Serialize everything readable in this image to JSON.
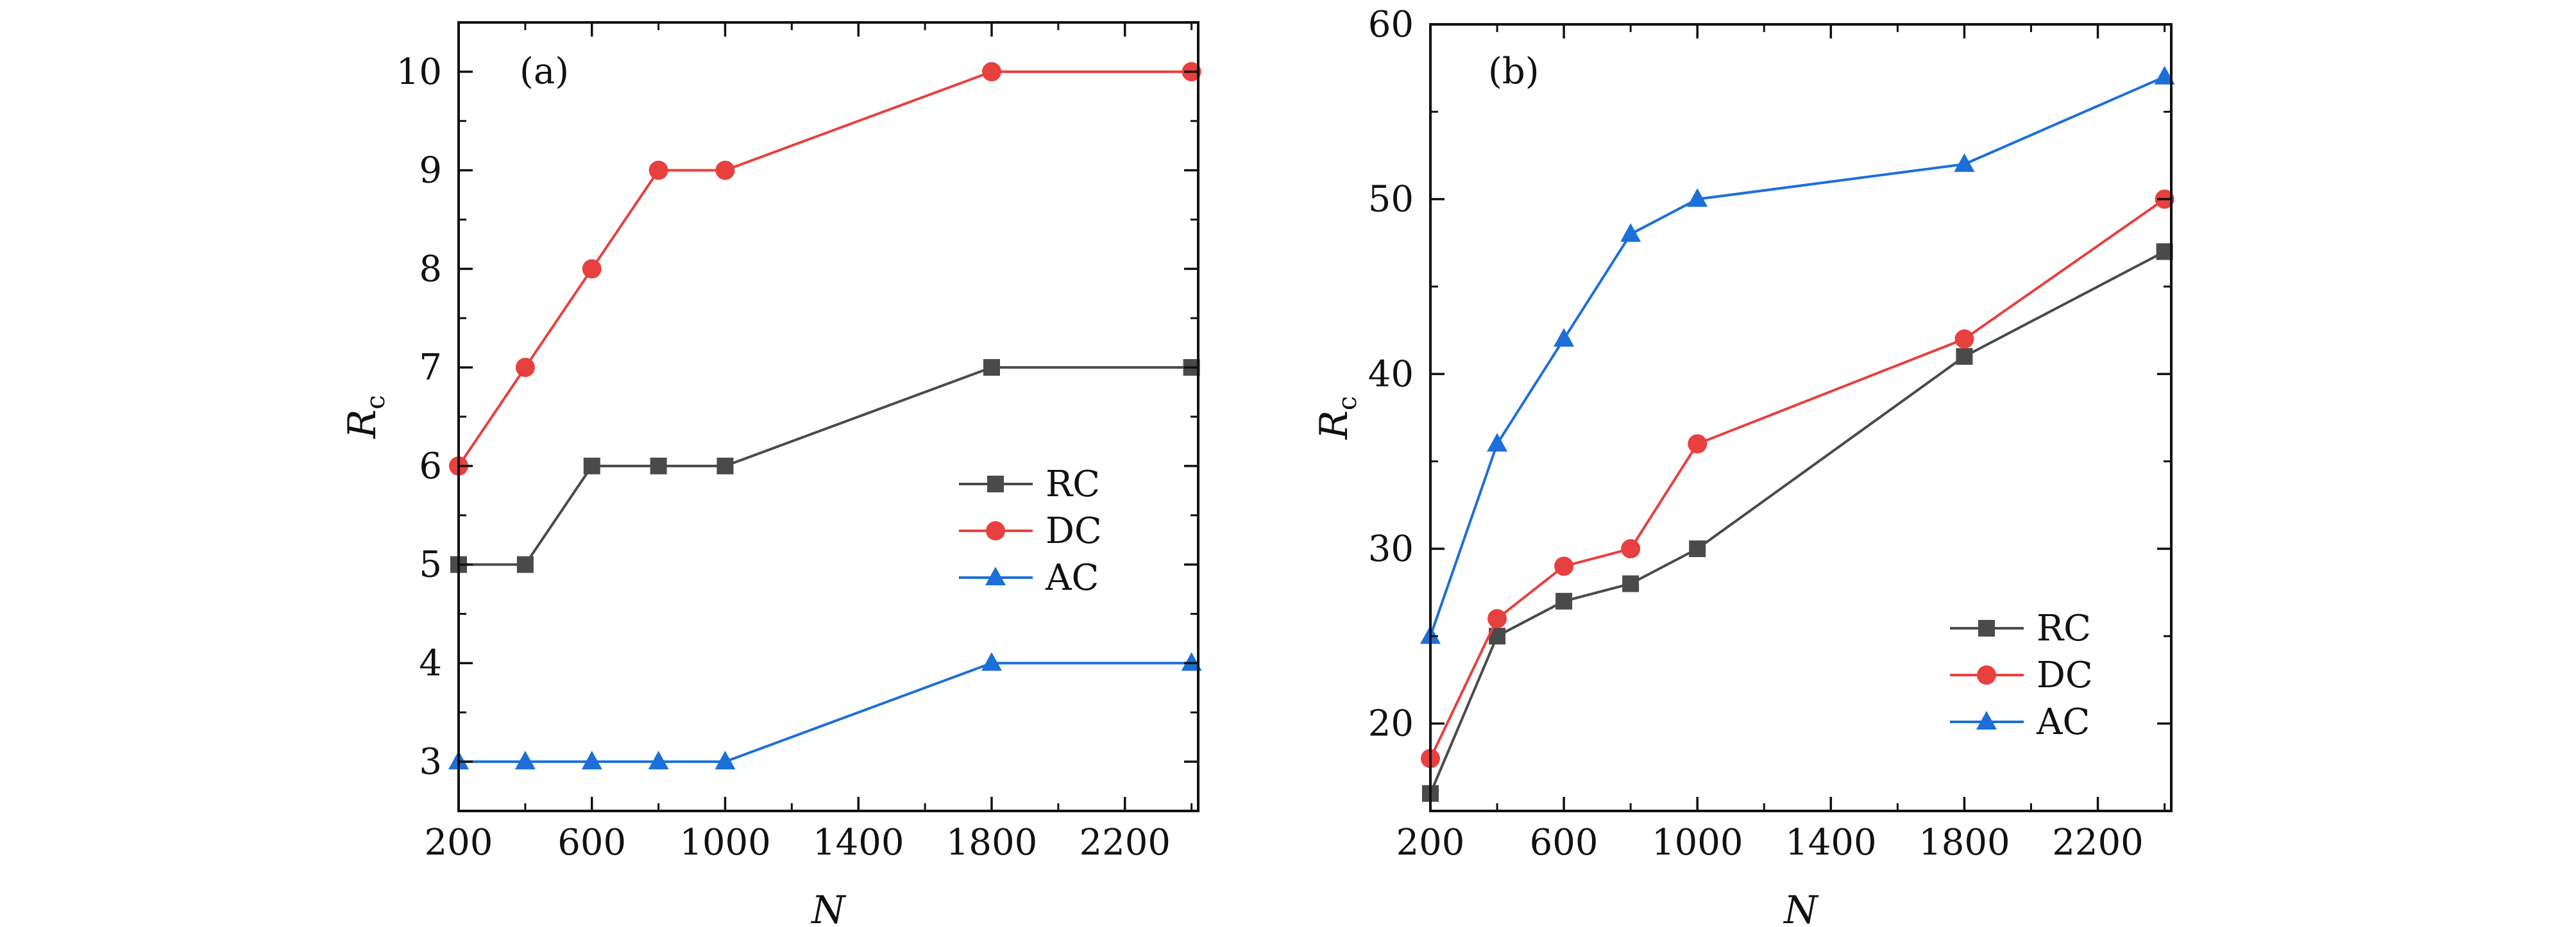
{
  "colors": {
    "RC": "#4a4a4a",
    "DC": "#e8403e",
    "AC": "#1c6fd8",
    "axis": "#111111"
  },
  "chart_data": [
    {
      "type": "line",
      "panel_label": "(a)",
      "xlabel": "N",
      "ylabel_main": "R",
      "ylabel_sub": "c",
      "x": [
        200,
        400,
        600,
        800,
        1000,
        1800,
        2400
      ],
      "xlim": [
        200,
        2420
      ],
      "ylim": [
        2.5,
        10.5
      ],
      "xticks": [
        200,
        600,
        1000,
        1400,
        1800,
        2200
      ],
      "xticklabels": [
        "200",
        "600",
        "1000",
        "1400",
        "1800",
        "2200"
      ],
      "xminor": [
        400,
        800,
        1200,
        1600,
        2000,
        2400
      ],
      "yticks": [
        3,
        4,
        5,
        6,
        7,
        8,
        9,
        10
      ],
      "yticklabels": [
        "3",
        "4",
        "5",
        "6",
        "7",
        "8",
        "9",
        "10"
      ],
      "legend_position": "center-right",
      "series": [
        {
          "name": "RC",
          "marker": "square",
          "values": [
            5,
            5,
            6,
            6,
            6,
            7,
            7
          ]
        },
        {
          "name": "DC",
          "marker": "circle",
          "values": [
            6,
            7,
            8,
            9,
            9,
            10,
            10
          ]
        },
        {
          "name": "AC",
          "marker": "triangle",
          "values": [
            3,
            3,
            3,
            3,
            3,
            4,
            4
          ]
        }
      ]
    },
    {
      "type": "line",
      "panel_label": "(b)",
      "xlabel": "N",
      "ylabel_main": "R",
      "ylabel_sub": "c",
      "x": [
        200,
        400,
        600,
        800,
        1000,
        1800,
        2400
      ],
      "xlim": [
        200,
        2420
      ],
      "ylim": [
        15,
        60
      ],
      "xticks": [
        200,
        600,
        1000,
        1400,
        1800,
        2200
      ],
      "xticklabels": [
        "200",
        "600",
        "1000",
        "1400",
        "1800",
        "2200"
      ],
      "xminor": [
        400,
        800,
        1200,
        1600,
        2000,
        2400
      ],
      "yticks": [
        20,
        30,
        40,
        50,
        60
      ],
      "yticklabels": [
        "20",
        "30",
        "40",
        "50",
        "60"
      ],
      "legend_position": "lower-right",
      "series": [
        {
          "name": "RC",
          "marker": "square",
          "values": [
            16,
            25,
            27,
            28,
            30,
            41,
            47
          ]
        },
        {
          "name": "DC",
          "marker": "circle",
          "values": [
            18,
            26,
            29,
            30,
            36,
            42,
            50
          ]
        },
        {
          "name": "AC",
          "marker": "triangle",
          "values": [
            25,
            36,
            42,
            48,
            50,
            52,
            57
          ]
        }
      ]
    }
  ]
}
